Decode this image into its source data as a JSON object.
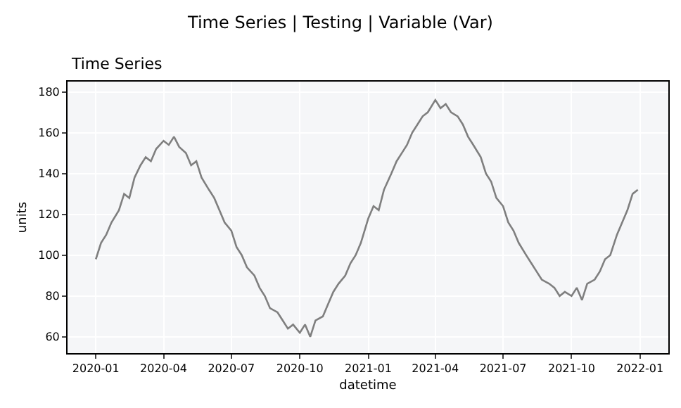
{
  "chart_data": {
    "type": "line",
    "title": "Time Series | Testing | Variable (Var)",
    "subtitle": "Time Series",
    "xlabel": "datetime",
    "ylabel": "units",
    "x": [
      "2020-01-01",
      "2020-01-08",
      "2020-01-15",
      "2020-01-22",
      "2020-02-01",
      "2020-02-08",
      "2020-02-15",
      "2020-02-22",
      "2020-03-01",
      "2020-03-08",
      "2020-03-15",
      "2020-03-22",
      "2020-04-01",
      "2020-04-08",
      "2020-04-15",
      "2020-04-22",
      "2020-05-01",
      "2020-05-08",
      "2020-05-15",
      "2020-05-22",
      "2020-06-01",
      "2020-06-08",
      "2020-06-15",
      "2020-06-22",
      "2020-07-01",
      "2020-07-08",
      "2020-07-15",
      "2020-07-22",
      "2020-08-01",
      "2020-08-08",
      "2020-08-15",
      "2020-08-22",
      "2020-09-01",
      "2020-09-08",
      "2020-09-15",
      "2020-09-22",
      "2020-10-01",
      "2020-10-08",
      "2020-10-15",
      "2020-10-22",
      "2020-11-01",
      "2020-11-08",
      "2020-11-15",
      "2020-11-22",
      "2020-12-01",
      "2020-12-08",
      "2020-12-15",
      "2020-12-22",
      "2021-01-01",
      "2021-01-08",
      "2021-01-15",
      "2021-01-22",
      "2021-02-01",
      "2021-02-08",
      "2021-02-15",
      "2021-02-22",
      "2021-03-01",
      "2021-03-08",
      "2021-03-15",
      "2021-03-22",
      "2021-04-01",
      "2021-04-08",
      "2021-04-15",
      "2021-04-22",
      "2021-05-01",
      "2021-05-08",
      "2021-05-15",
      "2021-05-22",
      "2021-06-01",
      "2021-06-08",
      "2021-06-15",
      "2021-06-22",
      "2021-07-01",
      "2021-07-08",
      "2021-07-15",
      "2021-07-22",
      "2021-08-01",
      "2021-08-08",
      "2021-08-15",
      "2021-08-22",
      "2021-09-01",
      "2021-09-08",
      "2021-09-15",
      "2021-09-22",
      "2021-10-01",
      "2021-10-08",
      "2021-10-15",
      "2021-10-22",
      "2021-11-01",
      "2021-11-08",
      "2021-11-15",
      "2021-11-22",
      "2021-12-01",
      "2021-12-08",
      "2021-12-15",
      "2021-12-22",
      "2021-12-29"
    ],
    "series": [
      {
        "color": "#7f7f7f",
        "values": [
          98,
          106,
          110,
          116,
          122,
          130,
          128,
          138,
          144,
          148,
          146,
          152,
          156,
          154,
          158,
          153,
          150,
          144,
          146,
          138,
          132,
          128,
          122,
          116,
          112,
          104,
          100,
          94,
          90,
          84,
          80,
          74,
          72,
          68,
          64,
          66,
          62,
          66,
          60,
          68,
          70,
          76,
          82,
          86,
          90,
          96,
          100,
          106,
          118,
          124,
          122,
          132,
          140,
          146,
          150,
          154,
          160,
          164,
          168,
          170,
          176,
          172,
          174,
          170,
          168,
          164,
          158,
          154,
          148,
          140,
          136,
          128,
          124,
          116,
          112,
          106,
          100,
          96,
          92,
          88,
          86,
          84,
          80,
          82,
          80,
          84,
          78,
          86,
          88,
          92,
          98,
          100,
          110,
          116,
          122,
          130,
          132
        ]
      }
    ],
    "xlim": [
      "2019-11-24",
      "2022-02-08"
    ],
    "xticks": [
      "2020-01",
      "2020-04",
      "2020-07",
      "2020-10",
      "2021-01",
      "2021-04",
      "2021-07",
      "2021-10",
      "2022-01"
    ],
    "ylim": [
      52,
      185
    ],
    "yticks": [
      60,
      80,
      100,
      120,
      140,
      160,
      180
    ],
    "grid": true,
    "marker": "none",
    "line_style": "solid"
  }
}
